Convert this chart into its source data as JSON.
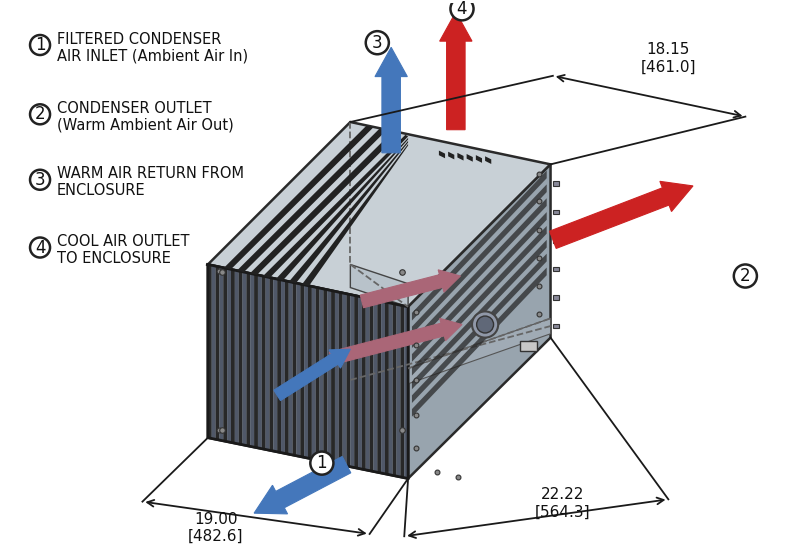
{
  "background_color": "#ffffff",
  "legend_items": [
    {
      "num": "1",
      "text1": "FILTERED CONDENSER",
      "text2": "AIR INLET (Ambient Air In)"
    },
    {
      "num": "2",
      "text1": "CONDENSER OUTLET",
      "text2": "(Warm Ambient Air Out)"
    },
    {
      "num": "3",
      "text1": "WARM AIR RETURN FROM",
      "text2": "ENCLOSURE"
    },
    {
      "num": "4",
      "text1": "COOL AIR OUTLET",
      "text2": "TO ENCLOSURE"
    }
  ],
  "arrow_blue": "#4477bb",
  "arrow_red": "#cc2222",
  "arrow_purple": "#aa6677",
  "line_color": "#222222",
  "face_top": "#c8d0d6",
  "face_front": "#b0bac2",
  "face_right": "#98a4ae",
  "face_inner": "#a8b2ba",
  "grille_dark": "#282828",
  "grille_mid": "#505868"
}
